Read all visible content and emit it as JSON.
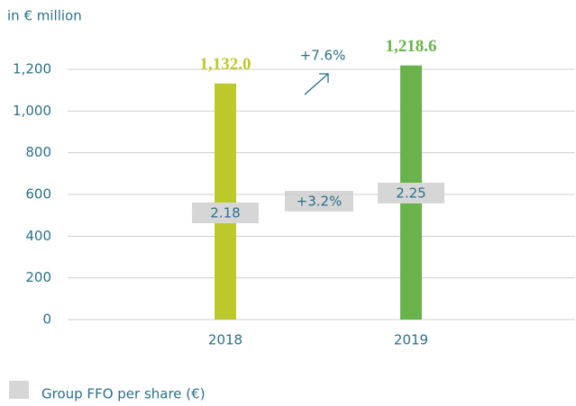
{
  "chart_data": {
    "type": "bar",
    "y_axis_label": "in € million",
    "categories": [
      "2018",
      "2019"
    ],
    "values": [
      1132.0,
      1218.6
    ],
    "value_labels": [
      "1,132.0",
      "1,218.6"
    ],
    "colors": [
      "#bcc92b",
      "#6ab34a"
    ],
    "ylim": [
      0,
      1200
    ],
    "yticks": [
      0,
      200,
      400,
      600,
      800,
      {
        "value": 1000,
        "label": "1,000"
      },
      {
        "value": 1200,
        "label": "1,200"
      }
    ],
    "grid": true,
    "ffo_per_share": {
      "name": "Group FFO per share (€)",
      "values": [
        2.18,
        2.25
      ],
      "color": "#d6d6d6"
    },
    "annotations": {
      "ffo_change": "+7.6%",
      "per_share_change": "+3.2%"
    }
  }
}
